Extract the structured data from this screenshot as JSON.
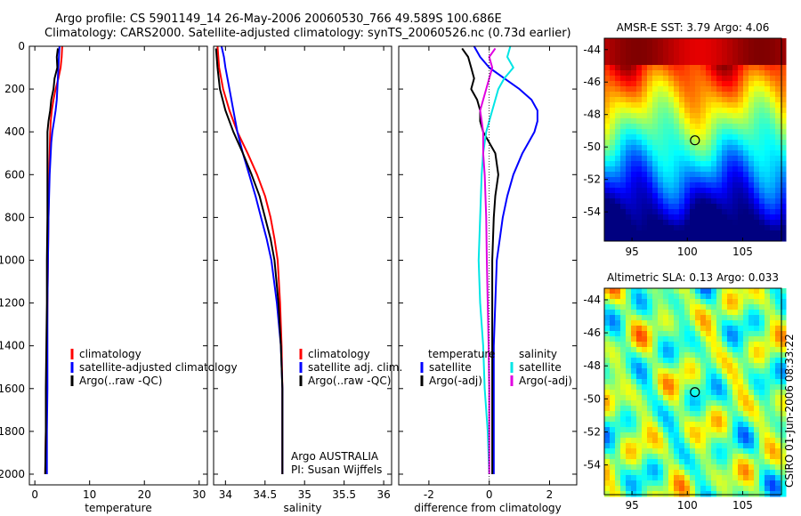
{
  "header": {
    "line1": "Argo profile: CS 5901149_14 26-May-2006 20060530_766 49.589S 100.686E",
    "line2": "Climatology: CARS2000. Satellite-adjusted climatology: synTS_20060526.nc (0.73d earlier)"
  },
  "colors": {
    "climatology": "#ff0000",
    "satellite": "#0000ff",
    "argo": "#000000",
    "satellite_diff": "#00e5e5",
    "argo_adj_diff": "#e000e0"
  },
  "chart_data": [
    {
      "type": "line",
      "xlabel": "temperature",
      "ylabel": "",
      "xlim": [
        -1,
        31.5
      ],
      "ylim": [
        2050,
        0
      ],
      "xticks": [
        0,
        10,
        20,
        30
      ],
      "yticks": [
        0,
        200,
        400,
        600,
        800,
        1000,
        1200,
        1400,
        1600,
        1800,
        2000
      ],
      "legend": [
        "climatology",
        "satellite-adjusted climatology",
        "Argo(..raw -QC)"
      ],
      "legend_position": "lower-right",
      "series": [
        {
          "name": "climatology",
          "color": "#ff0000",
          "depth": [
            0,
            50,
            100,
            150,
            200,
            250,
            300,
            350,
            400,
            500,
            600,
            800,
            1000,
            1200,
            1400,
            1600,
            1800,
            2000
          ],
          "values": [
            5.0,
            4.9,
            4.7,
            4.3,
            3.8,
            3.4,
            3.1,
            2.9,
            2.8,
            2.7,
            2.6,
            2.5,
            2.4,
            2.3,
            2.2,
            2.1,
            2.0,
            1.9
          ]
        },
        {
          "name": "satellite-adjusted climatology",
          "color": "#0000ff",
          "depth": [
            0,
            50,
            100,
            150,
            200,
            250,
            300,
            350,
            400,
            450,
            500,
            600,
            800,
            1000,
            1200,
            1400,
            1600,
            1800,
            2000
          ],
          "values": [
            4.5,
            4.4,
            4.3,
            4.2,
            4.1,
            4.0,
            3.8,
            3.5,
            3.2,
            3.0,
            2.9,
            2.7,
            2.5,
            2.4,
            2.3,
            2.3,
            2.3,
            2.2,
            2.2
          ]
        },
        {
          "name": "Argo(..raw -QC)",
          "color": "#000000",
          "depth": [
            10,
            50,
            100,
            150,
            200,
            250,
            300,
            350,
            400,
            500,
            600,
            800,
            1000,
            1200,
            1400,
            1600,
            1800,
            2000
          ],
          "values": [
            4.2,
            4.0,
            4.1,
            3.6,
            3.4,
            3.0,
            2.8,
            2.5,
            2.3,
            2.3,
            2.3,
            2.3,
            2.2,
            2.2,
            2.1,
            2.0,
            2.0,
            1.9
          ]
        }
      ]
    },
    {
      "type": "line",
      "xlabel": "salinity",
      "ylabel": "",
      "xlim": [
        33.85,
        36.1
      ],
      "ylim": [
        2050,
        0
      ],
      "xticks": [
        34,
        34.5,
        35,
        35.5,
        36
      ],
      "legend": [
        "climatology",
        "satellite adj. clim.",
        "Argo(..raw -QC)"
      ],
      "legend_position": "lower-right",
      "annotations": [
        "Argo AUSTRALIA",
        "PI: Susan Wijffels"
      ],
      "series": [
        {
          "name": "climatology",
          "color": "#ff0000",
          "depth": [
            0,
            100,
            200,
            300,
            400,
            500,
            600,
            700,
            800,
            900,
            1000,
            1200,
            1400,
            1600,
            1800,
            2000
          ],
          "values": [
            33.9,
            33.92,
            33.97,
            34.05,
            34.15,
            34.28,
            34.4,
            34.5,
            34.57,
            34.62,
            34.66,
            34.69,
            34.71,
            34.72,
            34.72,
            34.72
          ]
        },
        {
          "name": "satellite adj. clim.",
          "color": "#0000ff",
          "depth": [
            0,
            50,
            100,
            200,
            300,
            400,
            500,
            600,
            700,
            800,
            900,
            1000,
            1200,
            1400,
            1600,
            1800,
            2000
          ],
          "values": [
            33.95,
            33.98,
            34.0,
            34.05,
            34.1,
            34.15,
            34.22,
            34.3,
            34.38,
            34.45,
            34.52,
            34.58,
            34.65,
            34.7,
            34.72,
            34.72,
            34.72
          ]
        },
        {
          "name": "Argo(..raw -QC)",
          "color": "#000000",
          "depth": [
            10,
            100,
            200,
            300,
            400,
            500,
            600,
            700,
            800,
            900,
            1000,
            1200,
            1400,
            1600,
            1800,
            2000
          ],
          "values": [
            33.88,
            33.9,
            33.93,
            34.0,
            34.1,
            34.22,
            34.33,
            34.43,
            34.5,
            34.57,
            34.62,
            34.67,
            34.7,
            34.72,
            34.72,
            34.72
          ]
        }
      ]
    },
    {
      "type": "line",
      "xlabel": "difference from climatology",
      "ylabel": "",
      "xlim": [
        -3,
        2.9
      ],
      "ylim": [
        2050,
        0
      ],
      "xticks": [
        -2,
        0,
        2
      ],
      "legend_temperature_title": "temperature",
      "legend_salinity_title": "salinity",
      "legend": [
        "satellite",
        "Argo(-adj)",
        "satellite",
        "Argo(-adj)"
      ],
      "legend_position": "lower-center",
      "series": [
        {
          "name": "temperature satellite",
          "color": "#0000ff",
          "depth": [
            0,
            50,
            100,
            150,
            200,
            250,
            300,
            350,
            400,
            450,
            500,
            600,
            700,
            800,
            900,
            1000,
            1200,
            1400,
            1600,
            1800,
            2000
          ],
          "values": [
            -0.5,
            -0.3,
            0.0,
            0.5,
            1.0,
            1.4,
            1.6,
            1.6,
            1.5,
            1.3,
            1.1,
            0.8,
            0.6,
            0.45,
            0.35,
            0.25,
            0.2,
            0.15,
            0.15,
            0.15,
            0.15
          ]
        },
        {
          "name": "temperature Argo(-adj)",
          "color": "#000000",
          "depth": [
            10,
            50,
            100,
            150,
            200,
            250,
            300,
            350,
            400,
            500,
            600,
            700,
            800,
            1000,
            1200,
            1400,
            1600,
            1800,
            2000
          ],
          "values": [
            -0.9,
            -0.7,
            -0.6,
            -0.5,
            -0.6,
            -0.4,
            -0.3,
            -0.3,
            -0.2,
            0.2,
            0.3,
            0.2,
            0.15,
            0.1,
            0.1,
            0.1,
            0.1,
            0.1,
            0.1
          ]
        },
        {
          "name": "salinity satellite",
          "color": "#00e5e5",
          "depth": [
            0,
            50,
            100,
            150,
            200,
            300,
            400,
            500,
            600,
            800,
            1000,
            1200,
            1400,
            1600,
            1800,
            2000
          ],
          "values": [
            0.7,
            0.6,
            0.8,
            0.5,
            0.3,
            0.1,
            -0.1,
            -0.2,
            -0.25,
            -0.3,
            -0.35,
            -0.3,
            -0.2,
            -0.15,
            -0.05,
            0.0
          ]
        },
        {
          "name": "salinity Argo(-adj)",
          "color": "#e000e0",
          "depth": [
            10,
            50,
            100,
            200,
            300,
            400,
            500,
            600,
            800,
            1000,
            1200,
            1400,
            1600,
            1800,
            2000
          ],
          "values": [
            0.2,
            0.0,
            0.1,
            -0.1,
            -0.3,
            -0.2,
            -0.2,
            -0.15,
            -0.1,
            -0.08,
            -0.05,
            -0.02,
            0.0,
            0.0,
            0.0
          ]
        }
      ]
    },
    {
      "type": "heatmap",
      "title": "AMSR-E SST: 3.79 Argo: 4.06",
      "xticks": [
        95,
        100,
        105
      ],
      "yticks": [
        -44,
        -46,
        -48,
        -50,
        -52,
        -54
      ],
      "xlim": [
        92.5,
        108.5
      ],
      "ylim": [
        -55.8,
        -43.3
      ],
      "marker": {
        "lon": 100.686,
        "lat": -49.589
      }
    },
    {
      "type": "heatmap",
      "title": "Altimetric SLA: 0.13 Argo: 0.033",
      "xticks": [
        95,
        100,
        105
      ],
      "yticks": [
        -44,
        -46,
        -48,
        -50,
        -52,
        -54
      ],
      "xlim": [
        92.5,
        108.5
      ],
      "ylim": [
        -55.8,
        -43.3
      ],
      "marker": {
        "lon": 100.686,
        "lat": -49.589
      }
    }
  ],
  "footer": {
    "stamp": "CSIRO 01-Jun-2006 08:33:22"
  }
}
